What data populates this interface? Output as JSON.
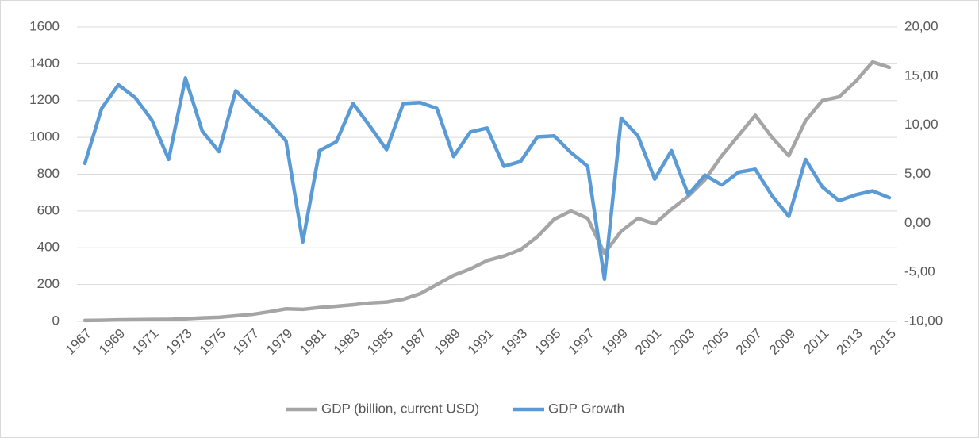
{
  "chart_data": {
    "type": "line",
    "categories": [
      "1967",
      null,
      "1969",
      null,
      "1971",
      null,
      "1973",
      null,
      "1975",
      null,
      "1977",
      null,
      "1979",
      null,
      "1981",
      null,
      "1983",
      null,
      "1985",
      null,
      "1987",
      null,
      "1989",
      null,
      "1991",
      null,
      "1993",
      null,
      "1995",
      null,
      "1997",
      null,
      "1999",
      null,
      "2001",
      null,
      "2003",
      null,
      "2005",
      null,
      "2007",
      null,
      "2009",
      null,
      "2011",
      null,
      "2013",
      null,
      "2015"
    ],
    "series": [
      {
        "name": "GDP (billion, current USD)",
        "color": "#a5a5a5",
        "values": [
          5,
          6,
          8,
          9,
          10,
          11,
          14,
          19,
          22,
          30,
          38,
          52,
          68,
          65,
          75,
          82,
          90,
          100,
          105,
          120,
          150,
          200,
          250,
          285,
          330,
          355,
          390,
          460,
          555,
          600,
          560,
          370,
          490,
          560,
          530,
          610,
          680,
          770,
          900,
          1010,
          1120,
          1000,
          900,
          1090,
          1200,
          1220,
          1305,
          1410,
          1380
        ]
      },
      {
        "name": "GDP Growth",
        "color": "#5b9bd5",
        "axis": "y2",
        "values": [
          6.1,
          11.7,
          14.1,
          12.8,
          10.5,
          6.5,
          14.8,
          9.4,
          7.3,
          13.5,
          11.8,
          10.3,
          8.4,
          -1.9,
          7.4,
          8.3,
          12.2,
          9.9,
          7.5,
          12.2,
          12.3,
          11.7,
          6.8,
          9.3,
          9.7,
          5.8,
          6.3,
          8.8,
          8.9,
          7.2,
          5.8,
          -5.7,
          10.7,
          8.9,
          4.5,
          7.4,
          2.9,
          4.9,
          3.9,
          5.2,
          5.5,
          2.8,
          0.7,
          6.5,
          3.7,
          2.3,
          2.9,
          3.3,
          2.6
        ]
      }
    ],
    "ylim": [
      0,
      1600
    ],
    "yticks": [
      0,
      200,
      400,
      600,
      800,
      1000,
      1200,
      1400,
      1600
    ],
    "y2lim": [
      -10,
      20
    ],
    "y2ticks": [
      {
        "value": -10,
        "label": "-10,00"
      },
      {
        "value": -5,
        "label": "-5,00"
      },
      {
        "value": 0,
        "label": "0,00"
      },
      {
        "value": 5,
        "label": "5,00"
      },
      {
        "value": 10,
        "label": "10,00"
      },
      {
        "value": 15,
        "label": "15,00"
      },
      {
        "value": 20,
        "label": "20,00"
      }
    ],
    "grid": true,
    "legend": "bottom"
  }
}
